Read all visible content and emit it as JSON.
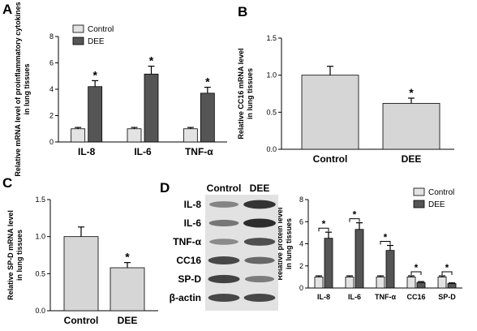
{
  "panels": {
    "a": "A",
    "b": "B",
    "c": "C",
    "d": "D"
  },
  "colors": {
    "control": "#e3e3e3",
    "dee": "#555555",
    "single": "#d6d6d6",
    "blot_bg": "#e2e2e2",
    "band": "#222222"
  },
  "chart_data": [
    {
      "id": "A",
      "type": "bar",
      "categories": [
        "IL-8",
        "IL-6",
        "TNF-α"
      ],
      "series": [
        {
          "name": "Control",
          "values": [
            1.0,
            1.0,
            1.0
          ],
          "errors": [
            0.1,
            0.1,
            0.1
          ]
        },
        {
          "name": "DEE",
          "values": [
            4.2,
            5.15,
            3.7
          ],
          "errors": [
            0.45,
            0.6,
            0.45
          ]
        }
      ],
      "significance": [
        "*",
        "*",
        "*"
      ],
      "ylabel": "Relative mRNA level of proinflammatory cytokines in lung tissues",
      "ylim": [
        0,
        8
      ],
      "yticks": [
        "0",
        "2",
        "4",
        "6",
        "8"
      ],
      "legend": "top-left"
    },
    {
      "id": "B",
      "type": "bar",
      "categories": [
        "Control",
        "DEE"
      ],
      "values": [
        1.0,
        0.62
      ],
      "errors": [
        0.12,
        0.07
      ],
      "significance": [
        "",
        "*"
      ],
      "ylabel": "Relative CC16 mRNA level in lung tissues",
      "ylim": [
        0,
        1.5
      ],
      "yticks": [
        "0.0",
        "0.5",
        "1.0",
        "1.5"
      ]
    },
    {
      "id": "C",
      "type": "bar",
      "categories": [
        "Control",
        "DEE"
      ],
      "values": [
        1.0,
        0.58
      ],
      "errors": [
        0.13,
        0.07
      ],
      "significance": [
        "",
        "*"
      ],
      "ylabel": "Relative SP-D mRNA level in lung tissues",
      "ylim": [
        0,
        1.5
      ],
      "yticks": [
        "0.0",
        "0.5",
        "1.0",
        "1.5"
      ]
    },
    {
      "id": "D",
      "type": "bar",
      "categories": [
        "IL-8",
        "IL-6",
        "TNF-α",
        "CC16",
        "SP-D"
      ],
      "series": [
        {
          "name": "Control",
          "values": [
            1.0,
            1.0,
            1.0,
            1.0,
            1.0
          ],
          "errors": [
            0.1,
            0.1,
            0.1,
            0.1,
            0.1
          ]
        },
        {
          "name": "DEE",
          "values": [
            4.5,
            5.3,
            3.4,
            0.5,
            0.4
          ],
          "errors": [
            0.55,
            0.6,
            0.45,
            0.08,
            0.06
          ]
        }
      ],
      "significance": [
        "*",
        "*",
        "*",
        "*",
        "*"
      ],
      "ylabel": "Relative protein level in lung tissues",
      "ylim": [
        0,
        8
      ],
      "yticks": [
        "0",
        "2",
        "4",
        "6",
        "8"
      ],
      "legend": "top-right"
    }
  ],
  "blot": {
    "columns": [
      "Control",
      "DEE"
    ],
    "rows": [
      "IL-8",
      "IL-6",
      "TNF-α",
      "CC16",
      "SP-D",
      "β-actin"
    ],
    "band_intensity": [
      [
        0.35,
        0.95
      ],
      [
        0.45,
        1.0
      ],
      [
        0.3,
        0.75
      ],
      [
        0.8,
        0.55
      ],
      [
        0.85,
        0.4
      ],
      [
        0.8,
        0.8
      ]
    ]
  }
}
